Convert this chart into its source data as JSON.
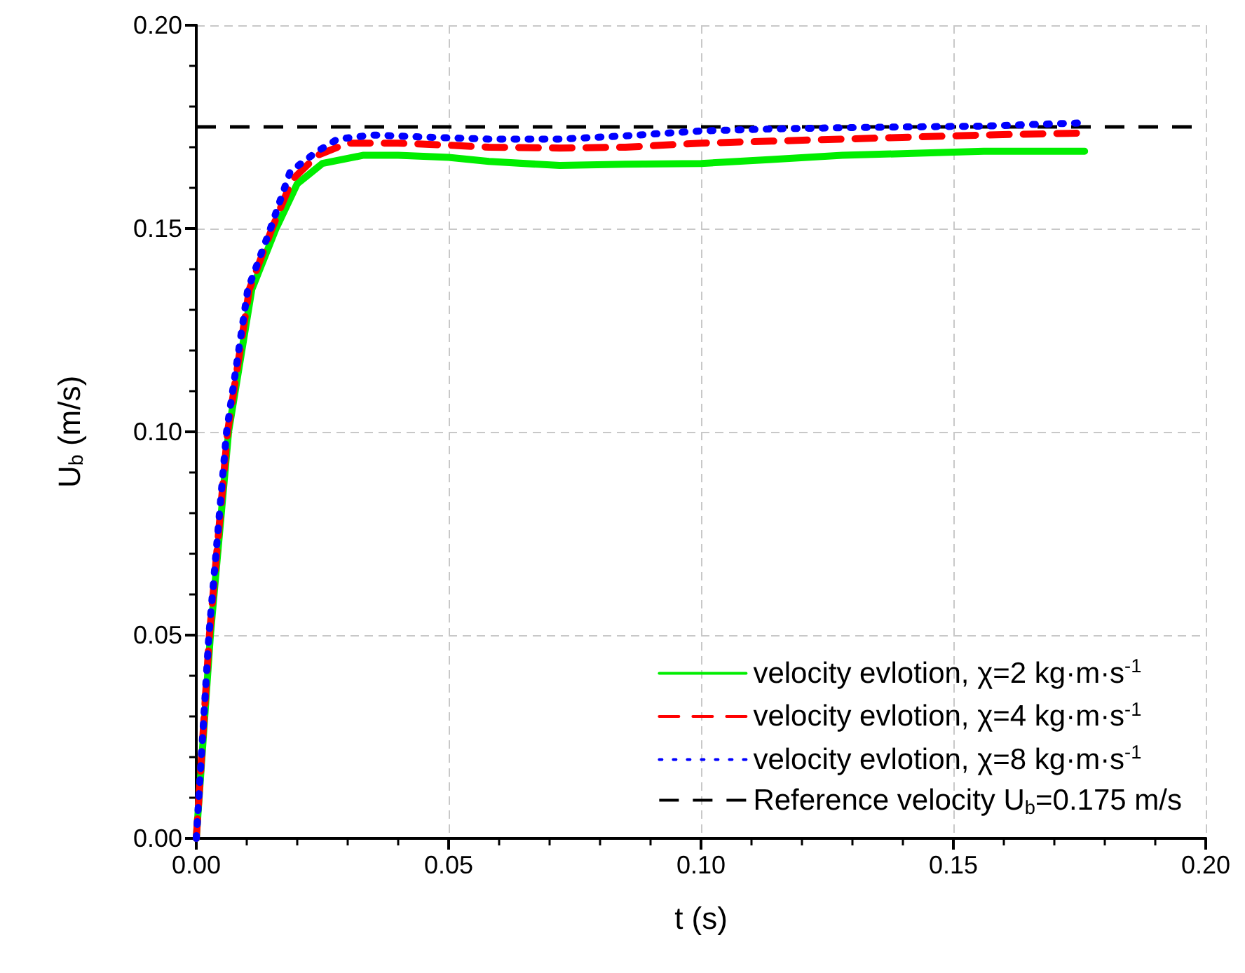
{
  "chart_data": {
    "type": "line",
    "xlabel": "t (s)",
    "ylabel": "U$_{b}$ (m/s)",
    "xlim": [
      0,
      0.2
    ],
    "xticks": [
      {
        "value": 0,
        "label": "0.00"
      },
      0.05,
      {
        "value": 0.1,
        "label": "0.10"
      },
      0.15,
      {
        "value": 0.2,
        "label": "0.20"
      }
    ],
    "ylim": [
      0,
      0.2
    ],
    "yticks": [
      {
        "value": 0,
        "label": "0.00"
      },
      0.05,
      {
        "value": 0.1,
        "label": "0.10"
      },
      0.15,
      {
        "value": 0.2,
        "label": "0.20"
      }
    ],
    "grid": true,
    "legend": "bottom right",
    "series": [
      {
        "name": "velocity evlotion, χ=2 kg·m·s$^{-1}$",
        "color": "#00ee00",
        "line_style": "solid",
        "marker": "none",
        "x": [
          0,
          0.0028,
          0.0064,
          0.011,
          0.0158,
          0.02,
          0.025,
          0.033,
          0.04,
          0.05,
          0.058,
          0.072,
          0.085,
          0.1,
          0.114,
          0.128,
          0.142,
          0.156,
          0.176
        ],
        "values": [
          0,
          0.05,
          0.1,
          0.135,
          0.15,
          0.161,
          0.166,
          0.168,
          0.168,
          0.1675,
          0.1665,
          0.1655,
          0.1658,
          0.166,
          0.167,
          0.168,
          0.1685,
          0.169,
          0.169
        ]
      },
      {
        "name": "velocity evlotion, χ=4 kg·m·s$^{-1}$",
        "color": "#ff0000",
        "line_style": "dashed",
        "marker": "none",
        "x": [
          0,
          0.0026,
          0.0062,
          0.0105,
          0.015,
          0.019,
          0.024,
          0.03,
          0.04,
          0.05,
          0.058,
          0.072,
          0.085,
          0.1,
          0.114,
          0.128,
          0.142,
          0.156,
          0.176
        ],
        "values": [
          0,
          0.05,
          0.1,
          0.135,
          0.15,
          0.162,
          0.168,
          0.171,
          0.171,
          0.1705,
          0.17,
          0.1698,
          0.17,
          0.171,
          0.1715,
          0.172,
          0.1725,
          0.173,
          0.1735
        ]
      },
      {
        "name": "velocity evlotion, χ=8 kg·m·s$^{-1}$",
        "color": "#0000ff",
        "line_style": "dotted",
        "marker": "none",
        "x": [
          0,
          0.0025,
          0.006,
          0.0102,
          0.0147,
          0.0186,
          0.024,
          0.028,
          0.035,
          0.045,
          0.058,
          0.072,
          0.085,
          0.1,
          0.114,
          0.128,
          0.142,
          0.156,
          0.176
        ],
        "values": [
          0,
          0.05,
          0.1,
          0.135,
          0.15,
          0.164,
          0.169,
          0.172,
          0.173,
          0.1725,
          0.172,
          0.172,
          0.1728,
          0.174,
          0.1745,
          0.1748,
          0.175,
          0.1752,
          0.176
        ]
      }
    ],
    "ref_lines": [
      {
        "axis": "y",
        "value": 0.175,
        "label": "Reference velocity U$_{b}$=0.175 m/s",
        "color": "#000000",
        "line_style": "dashed"
      }
    ]
  }
}
